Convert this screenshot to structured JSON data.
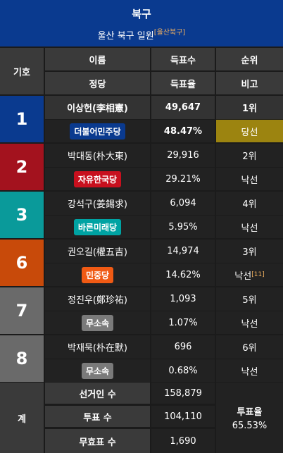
{
  "title": "북구",
  "subtitle": "울산 북구 일원",
  "subtitle_note": "[울산북구]",
  "headers": {
    "number": "기호",
    "name": "이름",
    "party": "정당",
    "votes": "득표수",
    "rate": "득표율",
    "rank": "순위",
    "remark": "비고"
  },
  "candidates": [
    {
      "num": "1",
      "name": "이상헌(李相憲)",
      "party": "더불어민주당",
      "votes": "49,647",
      "rate": "48.47%",
      "rank": "1위",
      "remark": "당선",
      "num_color": "#0a3a8f",
      "party_color": "#0a3a8f"
    },
    {
      "num": "2",
      "name": "박대동(朴大東)",
      "party": "자유한국당",
      "votes": "29,916",
      "rate": "29.21%",
      "rank": "2위",
      "remark": "낙선",
      "num_color": "#a3121e",
      "party_color": "#c8101e"
    },
    {
      "num": "3",
      "name": "강석구(姜錫求)",
      "party": "바른미래당",
      "votes": "6,094",
      "rate": "5.95%",
      "rank": "4위",
      "remark": "낙선",
      "num_color": "#0a9a9a",
      "party_color": "#00a3a3"
    },
    {
      "num": "6",
      "name": "권오길(權五吉)",
      "party": "민중당",
      "votes": "14,974",
      "rate": "14.62%",
      "rank": "3위",
      "remark": "낙선",
      "remark_ref": "[11]",
      "num_color": "#c84a0a",
      "party_color": "#f05a14"
    },
    {
      "num": "7",
      "name": "정진우(鄭珍祐)",
      "party": "무소속",
      "votes": "1,093",
      "rate": "1.07%",
      "rank": "5위",
      "remark": "낙선",
      "num_color": "#6a6a6a",
      "party_color": "#7a7a7a"
    },
    {
      "num": "8",
      "name": "박재묵(朴在默)",
      "party": "무소속",
      "votes": "696",
      "rate": "0.68%",
      "rank": "6위",
      "remark": "낙선",
      "num_color": "#6a6a6a",
      "party_color": "#7a7a7a"
    }
  ],
  "total": {
    "label": "계",
    "electorate_label": "선거인 수",
    "electorate": "158,879",
    "turnout_votes_label": "투표 수",
    "turnout_votes": "104,110",
    "invalid_label": "무효표 수",
    "invalid": "1,690",
    "turnout_rate_label": "투표율",
    "turnout_rate": "65.53%"
  }
}
